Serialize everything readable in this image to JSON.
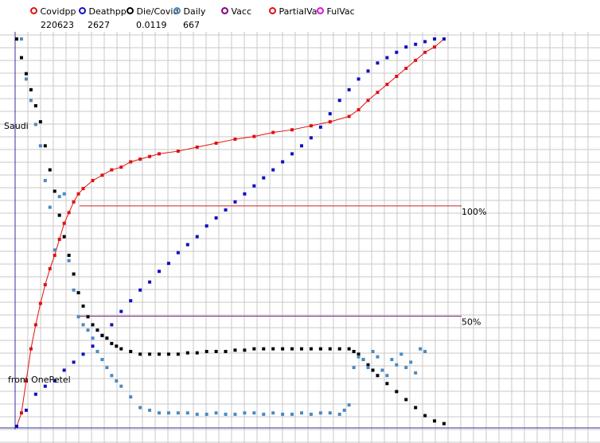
{
  "chart_data": {
    "type": "scatter",
    "title": "",
    "annotations": {
      "region_label": "Saudi",
      "credit": "from OnePetel",
      "ref_100": "100%",
      "ref_50": "50%"
    },
    "legend": [
      {
        "name": "Covidpp",
        "value": "220623",
        "color": "#e01010"
      },
      {
        "name": "Deathpp",
        "value": "2627",
        "color": "#1010c0"
      },
      {
        "name": "Die/Covid",
        "value": "0.0119",
        "color": "#000000"
      },
      {
        "name": "Daily",
        "value": "667",
        "color": "#4a8ac0"
      },
      {
        "name": "Vacc",
        "value": "",
        "color": "#800080"
      },
      {
        "name": "PartialVa",
        "value": "",
        "color": "#e01010"
      },
      {
        "name": "FulVac",
        "value": "",
        "color": "#e010e0"
      }
    ],
    "reference_lines": [
      {
        "label": "100%",
        "level": 1.0,
        "color": "#d02020"
      },
      {
        "label": "50%",
        "level": 0.5,
        "color": "#802080"
      }
    ],
    "x_range": [
      0,
      90
    ],
    "y_range": [
      0,
      1.45
    ],
    "grid": true,
    "series": [
      {
        "name": "Covidpp",
        "color": "#e01010",
        "connected": true,
        "x": [
          0,
          1,
          2,
          3,
          4,
          5,
          6,
          7,
          8,
          9,
          10,
          11,
          12,
          13,
          14,
          16,
          18,
          20,
          22,
          24,
          26,
          28,
          30,
          34,
          38,
          42,
          46,
          50,
          54,
          58,
          62,
          66,
          70,
          72,
          74,
          76,
          78,
          80,
          82,
          84,
          86,
          88,
          90
        ],
        "y": [
          0,
          0.05,
          0.17,
          0.29,
          0.38,
          0.46,
          0.53,
          0.59,
          0.64,
          0.7,
          0.76,
          0.8,
          0.84,
          0.87,
          0.89,
          0.92,
          0.94,
          0.96,
          0.97,
          0.99,
          1.0,
          1.01,
          1.02,
          1.03,
          1.045,
          1.06,
          1.075,
          1.085,
          1.1,
          1.11,
          1.125,
          1.14,
          1.16,
          1.185,
          1.22,
          1.25,
          1.28,
          1.31,
          1.34,
          1.37,
          1.4,
          1.42,
          1.45
        ]
      },
      {
        "name": "Deathpp",
        "color": "#1010c0",
        "connected": false,
        "x": [
          0,
          2,
          4,
          6,
          8,
          10,
          12,
          14,
          16,
          18,
          20,
          22,
          24,
          26,
          28,
          30,
          32,
          34,
          36,
          38,
          40,
          42,
          44,
          46,
          48,
          50,
          52,
          54,
          56,
          58,
          60,
          62,
          64,
          66,
          68,
          70,
          72,
          74,
          76,
          78,
          80,
          82,
          84,
          86,
          88,
          90
        ],
        "y": [
          0,
          0.06,
          0.12,
          0.15,
          0.17,
          0.21,
          0.24,
          0.27,
          0.3,
          0.34,
          0.38,
          0.43,
          0.47,
          0.51,
          0.54,
          0.58,
          0.61,
          0.65,
          0.68,
          0.71,
          0.75,
          0.78,
          0.81,
          0.84,
          0.87,
          0.9,
          0.93,
          0.96,
          0.99,
          1.02,
          1.05,
          1.08,
          1.12,
          1.17,
          1.22,
          1.26,
          1.3,
          1.33,
          1.36,
          1.38,
          1.4,
          1.42,
          1.43,
          1.44,
          1.45,
          1.45
        ]
      },
      {
        "name": "Die/Covid",
        "color": "#000000",
        "connected": false,
        "x": [
          0,
          1,
          2,
          3,
          4,
          5,
          6,
          7,
          8,
          9,
          10,
          11,
          12,
          13,
          14,
          15,
          16,
          17,
          18,
          19,
          20,
          21,
          22,
          24,
          26,
          28,
          30,
          32,
          34,
          36,
          38,
          40,
          42,
          44,
          46,
          48,
          50,
          52,
          54,
          56,
          58,
          60,
          62,
          64,
          66,
          68,
          70,
          71,
          72,
          73,
          74,
          75,
          76,
          78,
          80,
          82,
          84,
          86,
          88,
          90
        ],
        "y": [
          1.45,
          1.38,
          1.32,
          1.26,
          1.2,
          1.14,
          1.05,
          0.96,
          0.88,
          0.79,
          0.71,
          0.64,
          0.57,
          0.5,
          0.45,
          0.41,
          0.38,
          0.36,
          0.34,
          0.33,
          0.31,
          0.3,
          0.29,
          0.28,
          0.27,
          0.27,
          0.27,
          0.27,
          0.27,
          0.275,
          0.275,
          0.28,
          0.28,
          0.28,
          0.285,
          0.285,
          0.29,
          0.29,
          0.29,
          0.29,
          0.29,
          0.29,
          0.29,
          0.29,
          0.29,
          0.29,
          0.29,
          0.28,
          0.27,
          0.25,
          0.23,
          0.21,
          0.19,
          0.16,
          0.13,
          0.1,
          0.07,
          0.04,
          0.02,
          0.01
        ]
      },
      {
        "name": "Daily",
        "color": "#4a8ac0",
        "connected": false,
        "x": [
          1,
          2,
          3,
          4,
          5,
          6,
          7,
          8,
          9,
          10,
          11,
          12,
          13,
          14,
          15,
          16,
          17,
          18,
          19,
          20,
          21,
          22,
          24,
          26,
          28,
          30,
          32,
          34,
          36,
          38,
          40,
          42,
          44,
          46,
          48,
          50,
          52,
          54,
          56,
          58,
          60,
          62,
          64,
          66,
          68,
          69,
          70,
          71,
          72,
          73,
          74,
          75,
          76,
          77,
          78,
          79,
          80,
          81,
          82,
          83,
          84,
          85,
          86
        ],
        "y": [
          1.45,
          1.3,
          1.22,
          1.13,
          1.05,
          0.92,
          0.82,
          0.66,
          0.86,
          0.87,
          0.62,
          0.51,
          0.41,
          0.38,
          0.36,
          0.33,
          0.28,
          0.25,
          0.22,
          0.19,
          0.17,
          0.15,
          0.11,
          0.07,
          0.06,
          0.05,
          0.05,
          0.05,
          0.05,
          0.045,
          0.045,
          0.05,
          0.045,
          0.045,
          0.05,
          0.05,
          0.045,
          0.05,
          0.045,
          0.045,
          0.05,
          0.045,
          0.05,
          0.05,
          0.045,
          0.06,
          0.08,
          0.22,
          0.26,
          0.25,
          0.22,
          0.28,
          0.26,
          0.21,
          0.19,
          0.25,
          0.23,
          0.27,
          0.22,
          0.24,
          0.2,
          0.29,
          0.28
        ]
      }
    ]
  }
}
